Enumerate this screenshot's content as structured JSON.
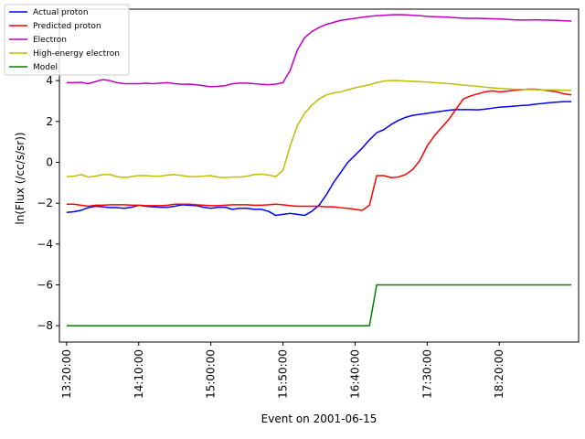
{
  "chart_data": {
    "type": "line",
    "title": "",
    "xlabel": "Event on 2001-06-15",
    "ylabel": "ln(Flux (/cc/s/sr))",
    "xlim": [
      -5,
      355
    ],
    "ylim": [
      -8.8,
      7.5
    ],
    "grid": false,
    "legend_position": "top-left",
    "x_unit": "minutes since 13:20:00",
    "xticks": [
      {
        "value": 0,
        "label": "13:20:00"
      },
      {
        "value": 50,
        "label": "14:10:00"
      },
      {
        "value": 100,
        "label": "15:00:00"
      },
      {
        "value": 150,
        "label": "15:50:00"
      },
      {
        "value": 200,
        "label": "16:40:00"
      },
      {
        "value": 250,
        "label": "17:30:00"
      },
      {
        "value": 300,
        "label": "18:20:00"
      }
    ],
    "yticks": [
      {
        "value": -8,
        "label": "−8"
      },
      {
        "value": -6,
        "label": "−6"
      },
      {
        "value": -4,
        "label": "−4"
      },
      {
        "value": -2,
        "label": "−2"
      },
      {
        "value": 0,
        "label": "0"
      },
      {
        "value": 2,
        "label": "2"
      },
      {
        "value": 4,
        "label": "4"
      }
    ],
    "series": [
      {
        "name": "Actual proton",
        "color": "#0000ff",
        "points": [
          [
            0,
            -2.45
          ],
          [
            5,
            -2.42
          ],
          [
            10,
            -2.35
          ],
          [
            15,
            -2.22
          ],
          [
            20,
            -2.15
          ],
          [
            25,
            -2.18
          ],
          [
            30,
            -2.22
          ],
          [
            35,
            -2.22
          ],
          [
            40,
            -2.25
          ],
          [
            45,
            -2.2
          ],
          [
            50,
            -2.1
          ],
          [
            55,
            -2.15
          ],
          [
            60,
            -2.18
          ],
          [
            65,
            -2.2
          ],
          [
            70,
            -2.2
          ],
          [
            75,
            -2.15
          ],
          [
            80,
            -2.08
          ],
          [
            85,
            -2.1
          ],
          [
            90,
            -2.12
          ],
          [
            95,
            -2.2
          ],
          [
            100,
            -2.25
          ],
          [
            105,
            -2.2
          ],
          [
            110,
            -2.2
          ],
          [
            115,
            -2.3
          ],
          [
            120,
            -2.25
          ],
          [
            125,
            -2.25
          ],
          [
            130,
            -2.3
          ],
          [
            135,
            -2.3
          ],
          [
            140,
            -2.4
          ],
          [
            145,
            -2.6
          ],
          [
            150,
            -2.55
          ],
          [
            155,
            -2.5
          ],
          [
            160,
            -2.55
          ],
          [
            165,
            -2.6
          ],
          [
            170,
            -2.4
          ],
          [
            175,
            -2.1
          ],
          [
            180,
            -1.6
          ],
          [
            185,
            -1.0
          ],
          [
            190,
            -0.5
          ],
          [
            195,
            0.0
          ],
          [
            200,
            0.35
          ],
          [
            205,
            0.7
          ],
          [
            210,
            1.1
          ],
          [
            215,
            1.45
          ],
          [
            220,
            1.6
          ],
          [
            225,
            1.85
          ],
          [
            230,
            2.05
          ],
          [
            235,
            2.2
          ],
          [
            240,
            2.3
          ],
          [
            245,
            2.35
          ],
          [
            250,
            2.4
          ],
          [
            255,
            2.45
          ],
          [
            260,
            2.5
          ],
          [
            265,
            2.55
          ],
          [
            270,
            2.58
          ],
          [
            275,
            2.58
          ],
          [
            280,
            2.58
          ],
          [
            285,
            2.57
          ],
          [
            290,
            2.6
          ],
          [
            295,
            2.65
          ],
          [
            300,
            2.7
          ],
          [
            305,
            2.72
          ],
          [
            310,
            2.75
          ],
          [
            315,
            2.78
          ],
          [
            320,
            2.8
          ],
          [
            325,
            2.85
          ],
          [
            330,
            2.88
          ],
          [
            335,
            2.92
          ],
          [
            340,
            2.95
          ],
          [
            345,
            2.97
          ],
          [
            350,
            2.97
          ]
        ]
      },
      {
        "name": "Predicted proton",
        "color": "#ff0000",
        "points": [
          [
            0,
            -2.05
          ],
          [
            5,
            -2.05
          ],
          [
            10,
            -2.1
          ],
          [
            15,
            -2.15
          ],
          [
            20,
            -2.1
          ],
          [
            25,
            -2.1
          ],
          [
            30,
            -2.08
          ],
          [
            35,
            -2.08
          ],
          [
            40,
            -2.08
          ],
          [
            45,
            -2.1
          ],
          [
            50,
            -2.1
          ],
          [
            55,
            -2.12
          ],
          [
            60,
            -2.12
          ],
          [
            65,
            -2.12
          ],
          [
            70,
            -2.1
          ],
          [
            75,
            -2.05
          ],
          [
            80,
            -2.05
          ],
          [
            85,
            -2.05
          ],
          [
            90,
            -2.08
          ],
          [
            95,
            -2.1
          ],
          [
            100,
            -2.12
          ],
          [
            105,
            -2.12
          ],
          [
            110,
            -2.1
          ],
          [
            115,
            -2.08
          ],
          [
            120,
            -2.08
          ],
          [
            125,
            -2.08
          ],
          [
            130,
            -2.1
          ],
          [
            135,
            -2.1
          ],
          [
            140,
            -2.08
          ],
          [
            145,
            -2.05
          ],
          [
            150,
            -2.08
          ],
          [
            155,
            -2.12
          ],
          [
            160,
            -2.15
          ],
          [
            165,
            -2.15
          ],
          [
            170,
            -2.15
          ],
          [
            175,
            -2.15
          ],
          [
            180,
            -2.18
          ],
          [
            185,
            -2.18
          ],
          [
            190,
            -2.22
          ],
          [
            195,
            -2.25
          ],
          [
            200,
            -2.3
          ],
          [
            205,
            -2.35
          ],
          [
            210,
            -2.1
          ],
          [
            215,
            -0.65
          ],
          [
            220,
            -0.65
          ],
          [
            225,
            -0.75
          ],
          [
            230,
            -0.72
          ],
          [
            235,
            -0.6
          ],
          [
            240,
            -0.35
          ],
          [
            245,
            0.1
          ],
          [
            250,
            0.8
          ],
          [
            255,
            1.3
          ],
          [
            260,
            1.7
          ],
          [
            265,
            2.1
          ],
          [
            270,
            2.6
          ],
          [
            275,
            3.1
          ],
          [
            280,
            3.25
          ],
          [
            285,
            3.35
          ],
          [
            290,
            3.45
          ],
          [
            295,
            3.5
          ],
          [
            300,
            3.45
          ],
          [
            305,
            3.48
          ],
          [
            310,
            3.52
          ],
          [
            315,
            3.55
          ],
          [
            320,
            3.58
          ],
          [
            325,
            3.58
          ],
          [
            330,
            3.55
          ],
          [
            335,
            3.5
          ],
          [
            340,
            3.45
          ],
          [
            345,
            3.35
          ],
          [
            350,
            3.3
          ]
        ]
      },
      {
        "name": "Electron",
        "color": "#bf00bf",
        "points": [
          [
            0,
            3.9
          ],
          [
            5,
            3.9
          ],
          [
            10,
            3.92
          ],
          [
            15,
            3.85
          ],
          [
            20,
            3.95
          ],
          [
            25,
            4.05
          ],
          [
            30,
            4.0
          ],
          [
            35,
            3.9
          ],
          [
            40,
            3.85
          ],
          [
            45,
            3.85
          ],
          [
            50,
            3.85
          ],
          [
            55,
            3.87
          ],
          [
            60,
            3.85
          ],
          [
            65,
            3.88
          ],
          [
            70,
            3.9
          ],
          [
            75,
            3.85
          ],
          [
            80,
            3.82
          ],
          [
            85,
            3.83
          ],
          [
            90,
            3.8
          ],
          [
            95,
            3.75
          ],
          [
            100,
            3.7
          ],
          [
            105,
            3.72
          ],
          [
            110,
            3.75
          ],
          [
            115,
            3.85
          ],
          [
            120,
            3.88
          ],
          [
            125,
            3.88
          ],
          [
            130,
            3.85
          ],
          [
            135,
            3.82
          ],
          [
            140,
            3.8
          ],
          [
            145,
            3.83
          ],
          [
            150,
            3.9
          ],
          [
            155,
            4.5
          ],
          [
            160,
            5.5
          ],
          [
            165,
            6.1
          ],
          [
            170,
            6.4
          ],
          [
            175,
            6.6
          ],
          [
            180,
            6.75
          ],
          [
            185,
            6.85
          ],
          [
            190,
            6.95
          ],
          [
            195,
            7.0
          ],
          [
            200,
            7.05
          ],
          [
            205,
            7.1
          ],
          [
            210,
            7.15
          ],
          [
            215,
            7.18
          ],
          [
            220,
            7.2
          ],
          [
            225,
            7.22
          ],
          [
            230,
            7.23
          ],
          [
            235,
            7.22
          ],
          [
            240,
            7.2
          ],
          [
            245,
            7.18
          ],
          [
            250,
            7.15
          ],
          [
            255,
            7.13
          ],
          [
            260,
            7.12
          ],
          [
            265,
            7.1
          ],
          [
            270,
            7.08
          ],
          [
            275,
            7.06
          ],
          [
            280,
            7.05
          ],
          [
            285,
            7.05
          ],
          [
            290,
            7.04
          ],
          [
            295,
            7.03
          ],
          [
            300,
            7.02
          ],
          [
            305,
            7.0
          ],
          [
            310,
            6.98
          ],
          [
            315,
            6.97
          ],
          [
            320,
            6.97
          ],
          [
            325,
            6.98
          ],
          [
            330,
            6.97
          ],
          [
            335,
            6.96
          ],
          [
            340,
            6.95
          ],
          [
            345,
            6.93
          ],
          [
            350,
            6.92
          ]
        ]
      },
      {
        "name": "High-energy electron",
        "color": "#bfbf00",
        "points": [
          [
            0,
            -0.7
          ],
          [
            5,
            -0.68
          ],
          [
            10,
            -0.6
          ],
          [
            15,
            -0.72
          ],
          [
            20,
            -0.68
          ],
          [
            25,
            -0.6
          ],
          [
            30,
            -0.6
          ],
          [
            35,
            -0.7
          ],
          [
            40,
            -0.75
          ],
          [
            45,
            -0.7
          ],
          [
            50,
            -0.65
          ],
          [
            55,
            -0.65
          ],
          [
            60,
            -0.68
          ],
          [
            65,
            -0.68
          ],
          [
            70,
            -0.62
          ],
          [
            75,
            -0.6
          ],
          [
            80,
            -0.65
          ],
          [
            85,
            -0.7
          ],
          [
            90,
            -0.7
          ],
          [
            95,
            -0.68
          ],
          [
            100,
            -0.65
          ],
          [
            105,
            -0.73
          ],
          [
            110,
            -0.75
          ],
          [
            115,
            -0.72
          ],
          [
            120,
            -0.72
          ],
          [
            125,
            -0.68
          ],
          [
            130,
            -0.6
          ],
          [
            135,
            -0.58
          ],
          [
            140,
            -0.62
          ],
          [
            145,
            -0.7
          ],
          [
            150,
            -0.4
          ],
          [
            155,
            0.8
          ],
          [
            160,
            1.8
          ],
          [
            165,
            2.4
          ],
          [
            170,
            2.8
          ],
          [
            175,
            3.1
          ],
          [
            180,
            3.3
          ],
          [
            185,
            3.4
          ],
          [
            190,
            3.45
          ],
          [
            195,
            3.55
          ],
          [
            200,
            3.65
          ],
          [
            205,
            3.72
          ],
          [
            210,
            3.8
          ],
          [
            215,
            3.9
          ],
          [
            220,
            3.98
          ],
          [
            225,
            4.0
          ],
          [
            230,
            4.0
          ],
          [
            235,
            3.98
          ],
          [
            240,
            3.97
          ],
          [
            245,
            3.95
          ],
          [
            250,
            3.93
          ],
          [
            255,
            3.9
          ],
          [
            260,
            3.88
          ],
          [
            265,
            3.85
          ],
          [
            270,
            3.82
          ],
          [
            275,
            3.78
          ],
          [
            280,
            3.75
          ],
          [
            285,
            3.72
          ],
          [
            290,
            3.68
          ],
          [
            295,
            3.65
          ],
          [
            300,
            3.62
          ],
          [
            305,
            3.6
          ],
          [
            310,
            3.58
          ],
          [
            315,
            3.57
          ],
          [
            320,
            3.56
          ],
          [
            325,
            3.56
          ],
          [
            330,
            3.55
          ],
          [
            335,
            3.55
          ],
          [
            340,
            3.54
          ],
          [
            345,
            3.53
          ],
          [
            350,
            3.52
          ]
        ]
      },
      {
        "name": "Model",
        "color": "#008000",
        "points": [
          [
            0,
            -8.0
          ],
          [
            15,
            -8.0
          ],
          [
            30,
            -8.0
          ],
          [
            45,
            -8.0
          ],
          [
            60,
            -8.0
          ],
          [
            75,
            -8.0
          ],
          [
            90,
            -8.0
          ],
          [
            105,
            -8.0
          ],
          [
            120,
            -8.0
          ],
          [
            135,
            -8.0
          ],
          [
            150,
            -8.0
          ],
          [
            165,
            -8.0
          ],
          [
            180,
            -8.0
          ],
          [
            195,
            -8.0
          ],
          [
            210,
            -8.0
          ],
          [
            215,
            -6.0
          ],
          [
            230,
            -6.0
          ],
          [
            245,
            -6.0
          ],
          [
            260,
            -6.0
          ],
          [
            275,
            -6.0
          ],
          [
            290,
            -6.0
          ],
          [
            305,
            -6.0
          ],
          [
            320,
            -6.0
          ],
          [
            335,
            -6.0
          ],
          [
            350,
            -6.0
          ]
        ]
      }
    ]
  }
}
